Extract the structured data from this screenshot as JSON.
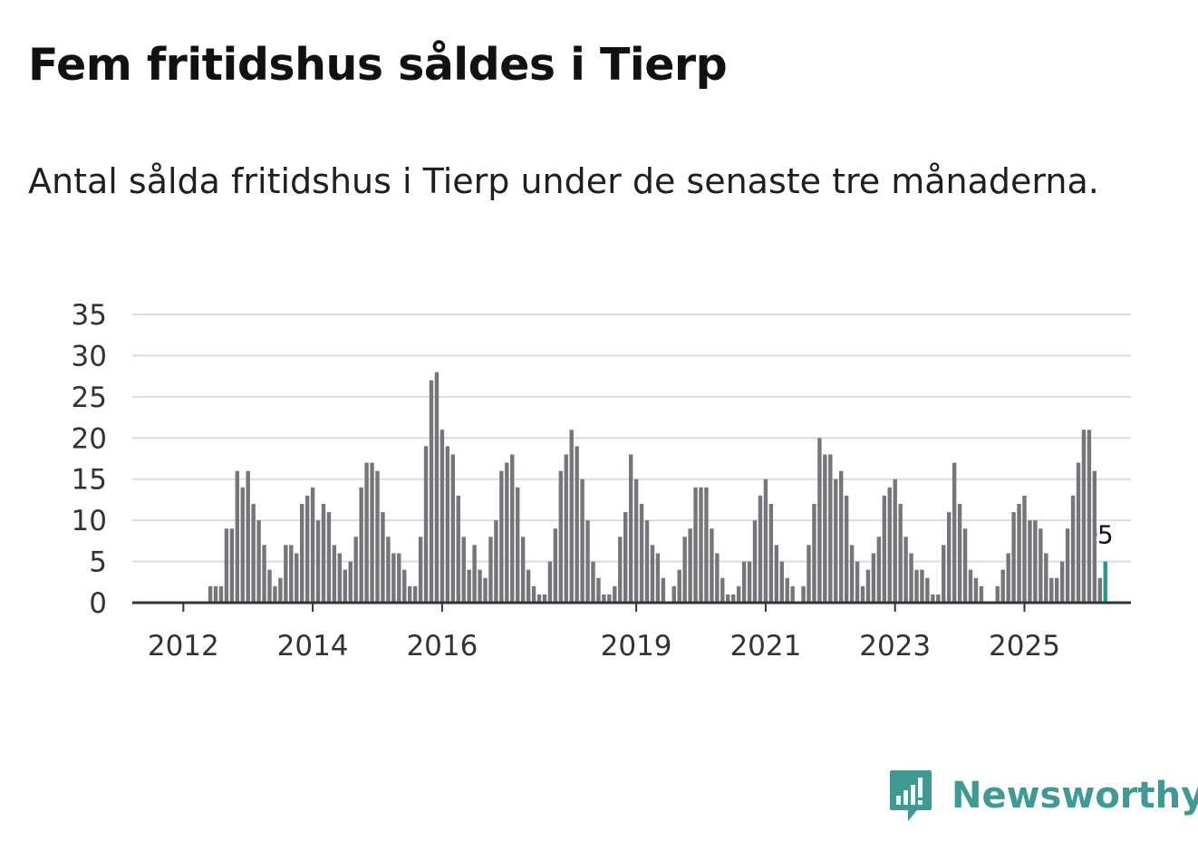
{
  "header": {
    "title": "Fem fritidshus såldes i Tierp",
    "subtitle": "Antal sålda fritidshus i Tierp under de senaste tre månaderna."
  },
  "brand": {
    "name": "Newsworthy",
    "icon": "newsworthy-logo-icon",
    "color": "#3f9a94"
  },
  "colors": {
    "bar": "#76757b",
    "highlight": "#1a9e96",
    "grid": "#dcdcdc"
  },
  "chart_data": {
    "type": "bar",
    "start": "2011-09",
    "frequency": "monthly",
    "ylim": [
      0,
      35
    ],
    "yticks": [
      0,
      5,
      10,
      15,
      20,
      25,
      30,
      35
    ],
    "xticks": [
      {
        "label": "2012",
        "date": "2012-01"
      },
      {
        "label": "2014",
        "date": "2014-01"
      },
      {
        "label": "2016",
        "date": "2016-01"
      },
      {
        "label": "2019",
        "date": "2019-01"
      },
      {
        "label": "2021",
        "date": "2021-01"
      },
      {
        "label": "2023",
        "date": "2023-01"
      },
      {
        "label": "2025",
        "date": "2025-01"
      }
    ],
    "values": [
      0,
      0,
      0,
      0,
      0,
      0,
      0,
      0,
      0,
      2,
      2,
      2,
      9,
      9,
      16,
      14,
      16,
      12,
      10,
      7,
      4,
      2,
      3,
      7,
      7,
      6,
      12,
      13,
      14,
      10,
      12,
      11,
      7,
      6,
      4,
      5,
      8,
      14,
      17,
      17,
      16,
      11,
      8,
      6,
      6,
      4,
      2,
      2,
      8,
      19,
      27,
      28,
      21,
      19,
      18,
      13,
      8,
      4,
      7,
      4,
      3,
      8,
      10,
      16,
      17,
      18,
      14,
      8,
      4,
      2,
      1,
      1,
      5,
      9,
      16,
      18,
      21,
      19,
      15,
      10,
      5,
      3,
      1,
      1,
      2,
      8,
      11,
      18,
      15,
      12,
      10,
      7,
      6,
      3,
      0,
      2,
      4,
      8,
      9,
      14,
      14,
      14,
      9,
      6,
      3,
      1,
      1,
      2,
      5,
      5,
      10,
      13,
      15,
      12,
      7,
      5,
      3,
      2,
      0,
      2,
      7,
      12,
      20,
      18,
      18,
      15,
      16,
      13,
      7,
      5,
      2,
      4,
      6,
      8,
      13,
      14,
      15,
      12,
      8,
      6,
      4,
      4,
      3,
      1,
      1,
      7,
      11,
      17,
      12,
      9,
      4,
      3,
      2,
      0,
      0,
      2,
      4,
      6,
      11,
      12,
      13,
      10,
      10,
      9,
      6,
      3,
      3,
      5,
      9,
      13,
      17,
      21,
      21,
      16,
      3,
      5
    ],
    "highlight_last": true,
    "last_label": "5"
  }
}
